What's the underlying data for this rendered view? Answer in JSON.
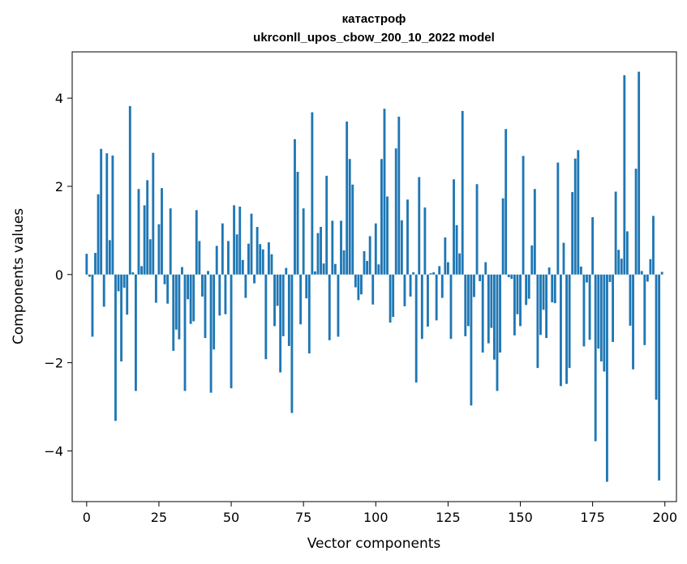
{
  "chart_data": {
    "type": "bar",
    "title": "катастроф",
    "subtitle": "ukrconll_upos_cbow_200_10_2022 model",
    "xlabel": "Vector components",
    "ylabel": "Components values",
    "xlim": [
      -5,
      204
    ],
    "ylim": [
      -5.15,
      5.05
    ],
    "xticks": [
      0,
      25,
      50,
      75,
      100,
      125,
      150,
      175,
      200
    ],
    "yticks": [
      -4,
      -2,
      0,
      2,
      4
    ],
    "xtick_labels": [
      "0",
      "25",
      "50",
      "75",
      "100",
      "125",
      "150",
      "175",
      "200"
    ],
    "ytick_labels": [
      "−4",
      "−2",
      "0",
      "2",
      "4"
    ],
    "grid": false,
    "bar_color": "#1f77b4",
    "x_start": 0,
    "values": [
      0.47,
      -0.05,
      -1.41,
      0.49,
      1.82,
      2.85,
      -0.73,
      2.75,
      0.78,
      2.7,
      -3.32,
      -0.38,
      -1.97,
      -0.3,
      -0.91,
      3.82,
      0.05,
      -2.64,
      1.94,
      0.19,
      1.57,
      2.14,
      0.8,
      2.76,
      -0.64,
      1.14,
      1.96,
      -0.22,
      -0.66,
      1.5,
      -1.73,
      -1.25,
      -1.47,
      0.17,
      -2.64,
      -0.56,
      -1.12,
      -1.06,
      1.46,
      0.76,
      -0.5,
      -1.44,
      0.08,
      -2.68,
      -1.7,
      0.65,
      -0.93,
      1.16,
      -0.9,
      0.76,
      -2.58,
      1.57,
      0.91,
      1.54,
      0.33,
      -0.53,
      0.7,
      1.38,
      -0.2,
      1.08,
      0.69,
      0.57,
      -1.92,
      0.73,
      0.46,
      -1.17,
      -0.71,
      -2.22,
      -1.4,
      0.15,
      -1.62,
      -3.14,
      3.07,
      2.33,
      -1.13,
      1.5,
      -0.54,
      -1.79,
      3.68,
      0.07,
      0.94,
      1.08,
      0.25,
      2.24,
      -1.49,
      1.22,
      0.24,
      -1.41,
      1.22,
      0.55,
      3.47,
      2.62,
      2.04,
      -0.29,
      -0.58,
      -0.45,
      0.53,
      0.31,
      0.87,
      -0.68,
      1.16,
      0.23,
      2.62,
      3.76,
      1.77,
      -1.09,
      -0.96,
      2.86,
      3.58,
      1.23,
      -0.72,
      1.7,
      -0.5,
      0.05,
      -2.45,
      2.21,
      -1.46,
      1.52,
      -1.18,
      0.03,
      0.05,
      -1.04,
      0.19,
      -0.53,
      0.84,
      0.28,
      -1.46,
      2.16,
      1.12,
      0.48,
      3.71,
      -1.4,
      -1.17,
      -2.97,
      -0.51,
      2.05,
      -0.15,
      -1.77,
      0.28,
      -1.56,
      -1.21,
      -1.93,
      -2.64,
      -1.77,
      1.73,
      3.3,
      -0.06,
      -0.1,
      -1.38,
      -0.9,
      -1.17,
      2.69,
      -0.69,
      -0.55,
      0.66,
      1.94,
      -2.12,
      -1.37,
      -0.8,
      -1.44,
      0.16,
      -0.63,
      -0.65,
      2.54,
      -2.53,
      0.72,
      -2.48,
      -2.12,
      1.87,
      2.63,
      2.82,
      0.18,
      -1.63,
      -0.18,
      -1.48,
      1.3,
      -3.78,
      -1.68,
      -1.97,
      -2.2,
      -4.7,
      -0.17,
      -1.53,
      1.88,
      0.56,
      0.36,
      4.52,
      0.98,
      -1.16,
      -2.15,
      2.4,
      4.6,
      0.08,
      -1.6,
      -0.16,
      0.35,
      1.33,
      -2.84,
      -4.67,
      0.06
    ]
  }
}
